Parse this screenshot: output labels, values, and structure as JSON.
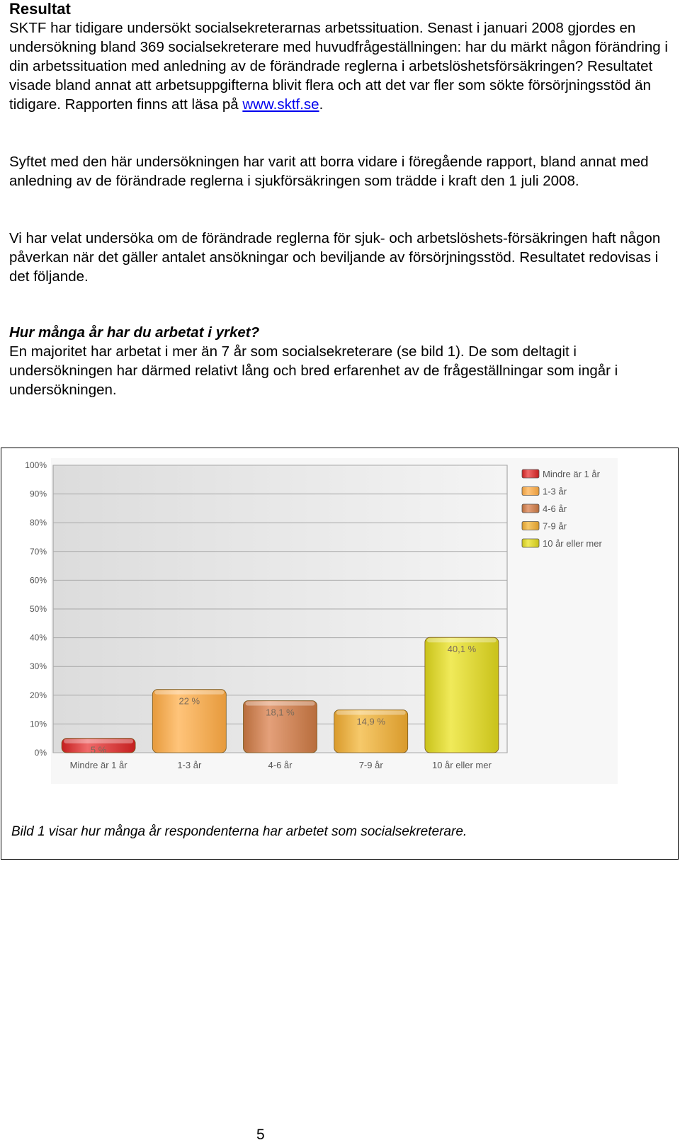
{
  "document": {
    "title": "Resultat",
    "paragraph1_before_link": "SKTF har tidigare undersökt socialsekreterarnas arbetssituation. Senast i januari 2008 gjordes en undersökning bland 369 socialsekreterare med huvudfrågeställningen: har du märkt någon förändring i din arbetssituation med anledning av de förändrade reglerna i arbetslöshetsförsäkringen? Resultatet visade bland annat att arbetsuppgifterna blivit flera och att det var fler som sökte försörjningsstöd än tidigare. Rapporten finns att läsa på ",
    "link_text": "www.sktf.se",
    "paragraph1_after_link": ".",
    "paragraph2": "Syftet med den här undersökningen har varit att borra vidare i föregående rapport, bland annat med anledning av de förändrade reglerna i sjukförsäkringen som trädde i kraft den 1 juli 2008.",
    "paragraph3": "Vi har velat undersöka om de förändrade reglerna för sjuk- och arbetslöshets-försäkringen haft någon påverkan när det gäller antalet ansökningar och beviljande av försörjningsstöd. Resultatet redovisas i det följande.",
    "question_heading": "Hur många år har du arbetat i yrket?",
    "paragraph4": "En majoritet har arbetat i mer än 7 år som socialsekreterare (se bild 1). De som deltagit i undersökningen har därmed relativt lång och bred erfarenhet av de frågeställningar som ingår i undersökningen.",
    "caption": "Bild 1 visar hur många år respondenterna har arbetet som socialsekreterare.",
    "page_number": "5"
  },
  "chart_data": {
    "type": "bar",
    "title": "",
    "xlabel": "",
    "ylabel": "",
    "ylim": [
      0,
      100
    ],
    "grid": true,
    "legend_position": "right",
    "y_ticks": [
      "0%",
      "10%",
      "20%",
      "30%",
      "40%",
      "50%",
      "60%",
      "70%",
      "80%",
      "90%",
      "100%"
    ],
    "categories": [
      "Mindre är 1 år",
      "1-3 år",
      "4-6 år",
      "7-9 år",
      "10 år eller mer"
    ],
    "values": [
      5,
      22,
      18.1,
      14.9,
      40.1
    ],
    "value_labels": [
      "5 %",
      "22 %",
      "18,1 %",
      "14,9 %",
      "40,1 %"
    ],
    "legend": [
      "Mindre är 1 år",
      "1-3 år",
      "4-6 år",
      "7-9 år",
      "10 år eller mer"
    ],
    "colors": [
      "#c41f1f",
      "#e69a3c",
      "#b86d3c",
      "#d99a2b",
      "#c9c21a"
    ],
    "highlight_colors": [
      "#ef6a6a",
      "#ffc47a",
      "#e4a07a",
      "#f6c96a",
      "#f0ea5a"
    ]
  }
}
